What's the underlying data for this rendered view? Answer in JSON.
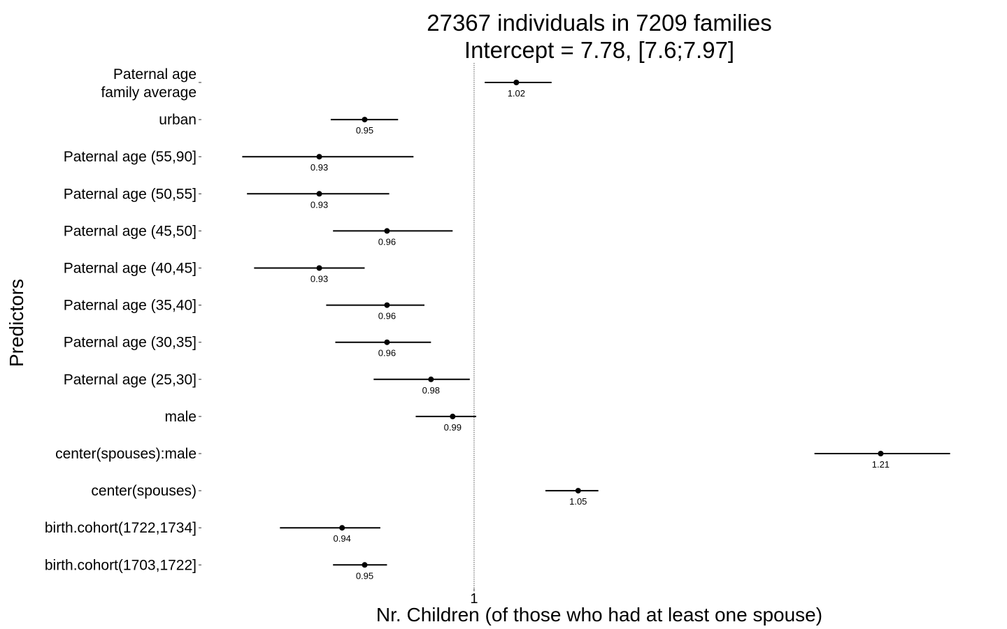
{
  "chart_data": {
    "type": "forest",
    "title_line1": "27367 individuals in 7209 families",
    "title_line2": "Intercept = 7.78, [7.6;7.97]",
    "xlabel": "Nr. Children (of those who had at least one spouse)",
    "ylabel": "Predictors",
    "x_ticks": [
      1
    ],
    "x_tick_labels": [
      "1"
    ],
    "reference_line": 1,
    "x_scale": "log",
    "xlim": [
      0.88,
      1.265
    ],
    "predictors": [
      {
        "name": "Paternal age family average",
        "label_lines": [
          "Paternal age",
          "family average"
        ],
        "estimate": 1.02,
        "lower": 1.005,
        "upper": 1.037,
        "value_label": "1.02"
      },
      {
        "name": "urban",
        "label_lines": [
          "urban"
        ],
        "estimate": 0.95,
        "lower": 0.935,
        "upper": 0.965,
        "value_label": "0.95"
      },
      {
        "name": "Paternal age (55,90]",
        "label_lines": [
          "Paternal age (55,90]"
        ],
        "estimate": 0.93,
        "lower": 0.897,
        "upper": 0.972,
        "value_label": "0.93"
      },
      {
        "name": "Paternal age (50,55]",
        "label_lines": [
          "Paternal age (50,55]"
        ],
        "estimate": 0.93,
        "lower": 0.899,
        "upper": 0.961,
        "value_label": "0.93"
      },
      {
        "name": "Paternal age (45,50]",
        "label_lines": [
          "Paternal age (45,50]"
        ],
        "estimate": 0.96,
        "lower": 0.936,
        "upper": 0.99,
        "value_label": "0.96"
      },
      {
        "name": "Paternal age (40,45]",
        "label_lines": [
          "Paternal age (40,45]"
        ],
        "estimate": 0.93,
        "lower": 0.902,
        "upper": 0.95,
        "value_label": "0.93"
      },
      {
        "name": "Paternal age (35,40]",
        "label_lines": [
          "Paternal age (35,40]"
        ],
        "estimate": 0.96,
        "lower": 0.933,
        "upper": 0.977,
        "value_label": "0.96"
      },
      {
        "name": "Paternal age (30,35]",
        "label_lines": [
          "Paternal age (30,35]"
        ],
        "estimate": 0.96,
        "lower": 0.937,
        "upper": 0.98,
        "value_label": "0.96"
      },
      {
        "name": "Paternal age (25,30]",
        "label_lines": [
          "Paternal age (25,30]"
        ],
        "estimate": 0.98,
        "lower": 0.954,
        "upper": 0.998,
        "value_label": "0.98"
      },
      {
        "name": "male",
        "label_lines": [
          "male"
        ],
        "estimate": 0.99,
        "lower": 0.973,
        "upper": 1.001,
        "value_label": "0.99"
      },
      {
        "name": "center(spouses):male",
        "label_lines": [
          "center(spouses):male"
        ],
        "estimate": 1.21,
        "lower": 1.173,
        "upper": 1.25,
        "value_label": "1.21"
      },
      {
        "name": "center(spouses)",
        "label_lines": [
          "center(spouses)"
        ],
        "estimate": 1.05,
        "lower": 1.034,
        "upper": 1.06,
        "value_label": "1.05"
      },
      {
        "name": "birth.cohort(1722,1734]",
        "label_lines": [
          "birth.cohort(1722,1734]"
        ],
        "estimate": 0.94,
        "lower": 0.913,
        "upper": 0.957,
        "value_label": "0.94"
      },
      {
        "name": "birth.cohort(1703,1722]",
        "label_lines": [
          "birth.cohort(1703,1722]"
        ],
        "estimate": 0.95,
        "lower": 0.936,
        "upper": 0.96,
        "value_label": "0.95"
      }
    ],
    "grid": false,
    "legend": "none"
  }
}
